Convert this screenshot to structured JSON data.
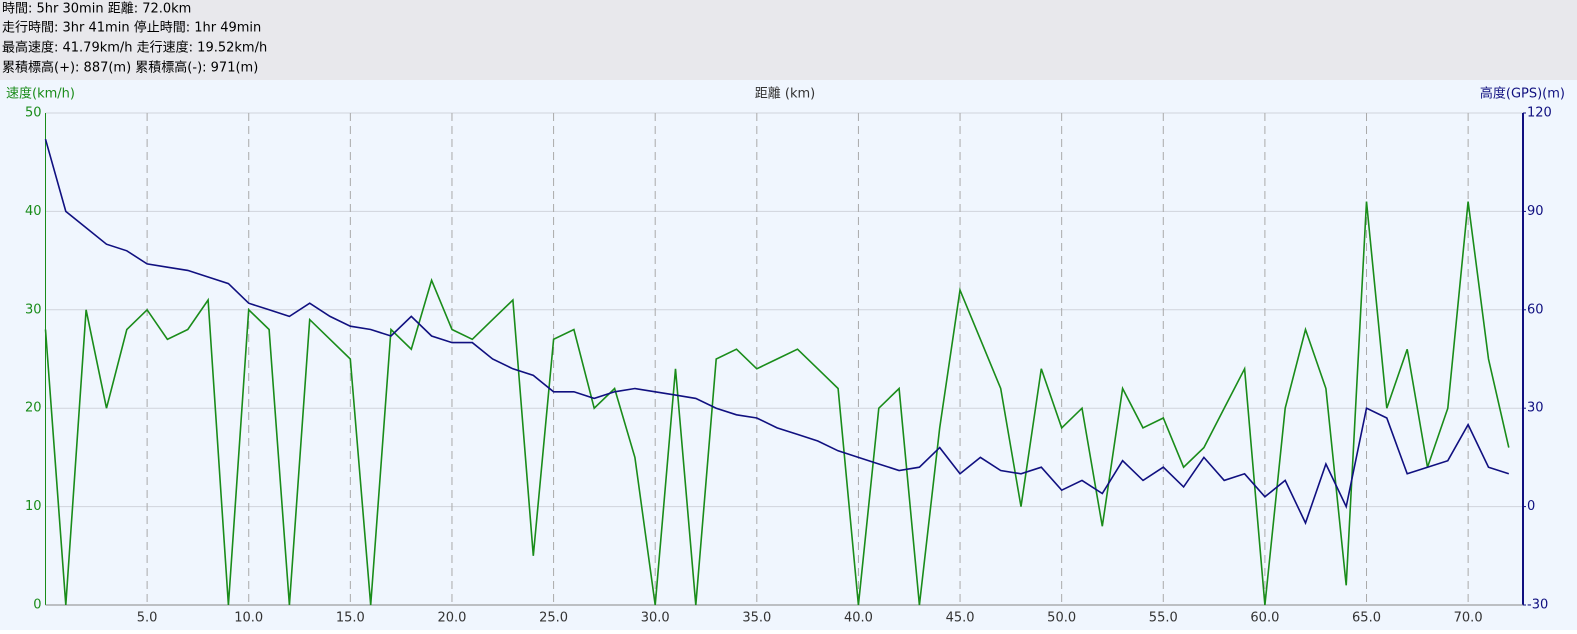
{
  "header": {
    "lines": [
      "時間: 5hr 30min 距離: 72.0km",
      "走行時間: 3hr 41min 停止時間: 1hr 49min",
      "最高速度: 41.79km/h 走行速度: 19.52km/h",
      "累積標高(+): 887(m) 累積標高(-): 971(m)"
    ]
  },
  "chart_data": {
    "type": "line",
    "xlabel": "距離 (km)",
    "ylabel": "速度(km/h)",
    "y2label": "高度(GPS)(m)",
    "x": [
      0,
      1,
      2,
      3,
      4,
      5,
      6,
      7,
      8,
      9,
      10,
      11,
      12,
      13,
      14,
      15,
      16,
      17,
      18,
      19,
      20,
      21,
      22,
      23,
      24,
      25,
      26,
      27,
      28,
      29,
      30,
      31,
      32,
      33,
      34,
      35,
      36,
      37,
      38,
      39,
      40,
      41,
      42,
      43,
      44,
      45,
      46,
      47,
      48,
      49,
      50,
      51,
      52,
      53,
      54,
      55,
      56,
      57,
      58,
      59,
      60,
      61,
      62,
      63,
      64,
      65,
      66,
      67,
      68,
      69,
      70,
      71,
      72
    ],
    "series": [
      {
        "name": "速度",
        "color": "#1a8c1a",
        "axis": "y",
        "values": [
          28,
          0,
          30,
          20,
          28,
          30,
          27,
          28,
          31,
          0,
          30,
          28,
          0,
          29,
          27,
          25,
          0,
          28,
          26,
          33,
          28,
          27,
          29,
          31,
          5,
          27,
          28,
          20,
          22,
          15,
          0,
          24,
          0,
          25,
          26,
          24,
          25,
          26,
          24,
          22,
          0,
          20,
          22,
          0,
          18,
          32,
          27,
          22,
          10,
          24,
          18,
          20,
          8,
          22,
          18,
          19,
          14,
          16,
          20,
          24,
          0,
          20,
          28,
          22,
          2,
          41,
          20,
          26,
          14,
          20,
          41,
          25,
          16
        ]
      },
      {
        "name": "高度",
        "color": "#101080",
        "axis": "y2",
        "values": [
          112,
          90,
          85,
          80,
          78,
          74,
          73,
          72,
          70,
          68,
          62,
          60,
          58,
          62,
          58,
          55,
          54,
          52,
          58,
          52,
          50,
          50,
          45,
          42,
          40,
          35,
          35,
          33,
          35,
          36,
          35,
          34,
          33,
          30,
          28,
          27,
          24,
          22,
          20,
          17,
          15,
          13,
          11,
          12,
          18,
          10,
          15,
          11,
          10,
          12,
          5,
          8,
          4,
          14,
          8,
          12,
          6,
          15,
          8,
          10,
          3,
          8,
          -5,
          13,
          0,
          30,
          27,
          10,
          12,
          14,
          25,
          12,
          10
        ]
      }
    ],
    "xlim": [
      0,
      72.7
    ],
    "ylim": [
      0,
      50
    ],
    "y2lim": [
      -30,
      120
    ],
    "xticks": [
      {
        "value": 5,
        "label": "5.0"
      },
      {
        "value": 10,
        "label": "10.0"
      },
      {
        "value": 15,
        "label": "15.0"
      },
      {
        "value": 20,
        "label": "20.0"
      },
      {
        "value": 25,
        "label": "25.0"
      },
      {
        "value": 30,
        "label": "30.0"
      },
      {
        "value": 35,
        "label": "35.0"
      },
      {
        "value": 40,
        "label": "40.0"
      },
      {
        "value": 45,
        "label": "45.0"
      },
      {
        "value": 50,
        "label": "50.0"
      },
      {
        "value": 55,
        "label": "55.0"
      },
      {
        "value": 60,
        "label": "60.0"
      },
      {
        "value": 65,
        "label": "65.0"
      },
      {
        "value": 70,
        "label": "70.0"
      }
    ],
    "yticks": [
      0,
      10,
      20,
      30,
      40,
      50
    ],
    "y2ticks": [
      -30,
      0,
      30,
      60,
      90,
      120
    ],
    "grid": true
  }
}
